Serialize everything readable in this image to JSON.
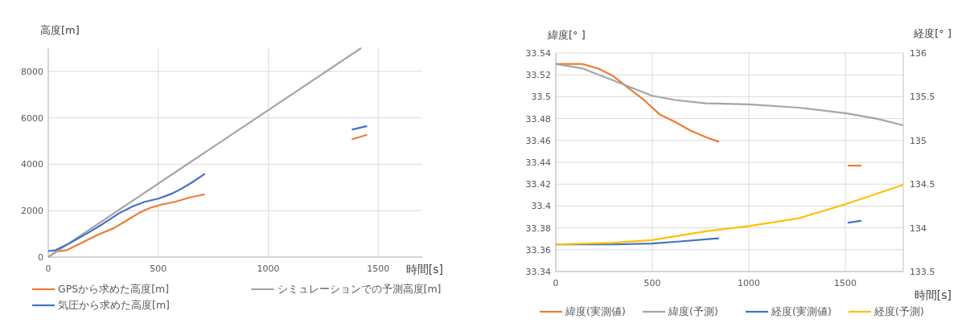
{
  "chart_data": [
    {
      "type": "line",
      "ylabel": "高度[m]",
      "xlabel": "時間[s]",
      "xlim": [
        0,
        1700
      ],
      "xticks": [
        0,
        500,
        1000,
        1500
      ],
      "ylim": [
        0,
        9000
      ],
      "yticks": [
        0,
        2000,
        4000,
        6000,
        8000
      ],
      "grid": true,
      "legend": "bottom",
      "series": [
        {
          "name": "GPSから求めた高度[m]",
          "color": "#ed7d31",
          "x": [
            0,
            34,
            84,
            148,
            223,
            299,
            362,
            412,
            463,
            513,
            576,
            639,
            709,
            null,
            1383,
            1446
          ],
          "values": [
            0,
            240,
            300,
            600,
            950,
            1250,
            1610,
            1900,
            2120,
            2260,
            2380,
            2560,
            2700,
            null,
            5080,
            5260
          ]
        },
        {
          "name": "シミュレーションでの予測高度[m]",
          "color": "#a5a5a5",
          "x": [
            0,
            1420
          ],
          "values": [
            0,
            8990
          ]
        },
        {
          "name": "気圧から求めた高度[m]",
          "color": "#4472c4",
          "x": [
            0,
            34,
            97,
            185,
            248,
            324,
            387,
            438,
            500,
            564,
            601,
            652,
            709,
            null,
            1383,
            1446
          ],
          "values": [
            260,
            300,
            600,
            1070,
            1430,
            1900,
            2200,
            2380,
            2520,
            2740,
            2920,
            3210,
            3570,
            null,
            5500,
            5640
          ]
        }
      ]
    },
    {
      "type": "line",
      "ylabel": "緯度[° ]",
      "y2label": "経度[° ]",
      "xlabel": "時間[s]",
      "xlim": [
        0,
        1800
      ],
      "xticks": [
        0,
        500,
        1000,
        1500
      ],
      "ylim": [
        33.34,
        33.54
      ],
      "yticks": [
        33.34,
        33.36,
        33.38,
        33.4,
        33.42,
        33.44,
        33.46,
        33.48,
        33.5,
        33.52,
        33.54
      ],
      "y2lim": [
        133.5,
        136
      ],
      "y2ticks": [
        133.5,
        134,
        134.5,
        135,
        135.5,
        136
      ],
      "grid": true,
      "legend": "bottom",
      "series": [
        {
          "name": "緯度(実測値)",
          "color": "#ed7d31",
          "x": [
            0,
            136,
            217,
            297,
            377,
            457,
            537,
            618,
            698,
            778,
            842,
            null,
            1516,
            1580
          ],
          "values": [
            33.53,
            33.53,
            33.526,
            33.519,
            33.508,
            33.497,
            33.484,
            33.477,
            33.469,
            33.463,
            33.459,
            null,
            33.437,
            33.437
          ]
        },
        {
          "name": "緯度(予測)",
          "color": "#a5a5a5",
          "x": [
            0,
            136,
            297,
            497,
            618,
            778,
            1000,
            1260,
            1500,
            1661,
            1797
          ],
          "values": [
            33.53,
            33.526,
            33.515,
            33.501,
            33.497,
            33.494,
            33.493,
            33.49,
            33.485,
            33.48,
            33.474
          ]
        },
        {
          "name": "経度(実測値)",
          "color": "#4472c4",
          "axis": "y2",
          "x": [
            0,
            297,
            497,
            618,
            842,
            null,
            1516,
            1580
          ],
          "values": [
            133.81,
            133.81,
            133.82,
            133.84,
            133.88,
            null,
            134.06,
            134.08
          ]
        },
        {
          "name": "経度(予測)",
          "color": "#ffc000",
          "axis": "y2",
          "x": [
            0,
            297,
            497,
            778,
            1000,
            1260,
            1500,
            1661,
            1797
          ],
          "values": [
            133.81,
            133.83,
            133.86,
            133.96,
            134.02,
            134.11,
            134.27,
            134.39,
            134.49
          ]
        }
      ]
    }
  ]
}
